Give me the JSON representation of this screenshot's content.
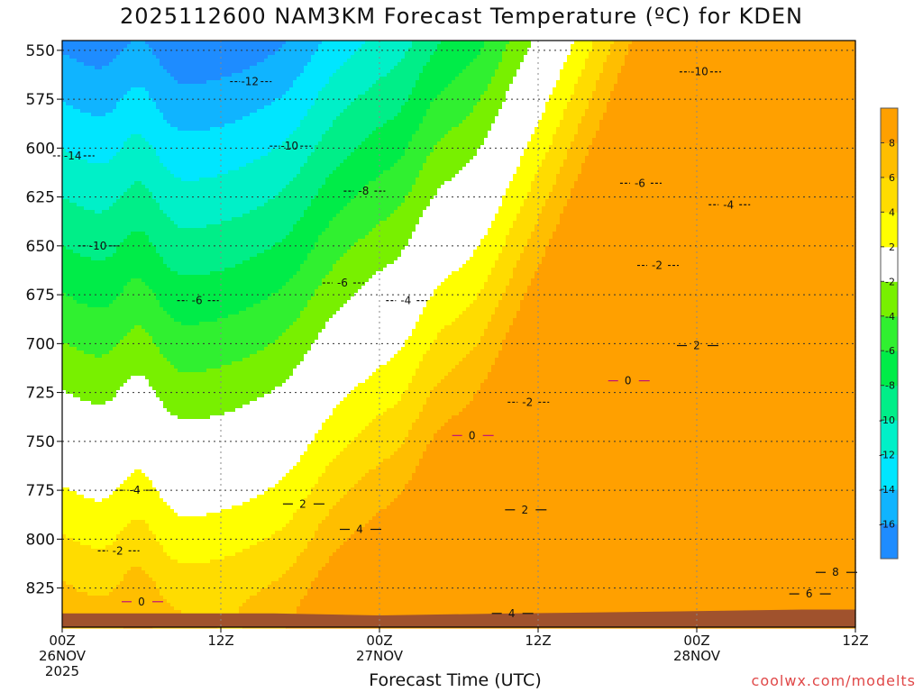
{
  "chart_data": {
    "type": "heatmap",
    "title": "2025112600 NAM3KM Forecast Temperature (ºC) for KDEN",
    "xlabel": "Forecast Time (UTC)",
    "ylabel": "",
    "x_ticks": [
      {
        "hour": 0,
        "lines": [
          "00Z",
          "26NOV",
          "2025"
        ]
      },
      {
        "hour": 12,
        "lines": [
          "12Z"
        ]
      },
      {
        "hour": 24,
        "lines": [
          "00Z",
          "27NOV"
        ]
      },
      {
        "hour": 36,
        "lines": [
          "12Z"
        ]
      },
      {
        "hour": 48,
        "lines": [
          "00Z",
          "28NOV"
        ]
      },
      {
        "hour": 60,
        "lines": [
          "12Z"
        ]
      }
    ],
    "xlim": [
      0,
      60
    ],
    "ylim": [
      845,
      545
    ],
    "y_ticks": [
      550,
      575,
      600,
      625,
      650,
      675,
      700,
      725,
      750,
      775,
      800,
      825
    ],
    "y_units": "hPa",
    "grid": true,
    "colorbar": {
      "levels": [
        -18,
        -16,
        -14,
        -12,
        -10,
        -8,
        -6,
        -4,
        -2,
        2,
        4,
        6,
        8,
        10
      ],
      "labels": [
        "-16",
        "-14",
        "-12",
        "-10",
        "-8",
        "-6",
        "-4",
        "-2",
        "2",
        "4",
        "6",
        "8"
      ],
      "colors": [
        "#1e8cff",
        "#10b4ff",
        "#00e6ff",
        "#00f0c8",
        "#00ee88",
        "#00ec48",
        "#30f030",
        "#78f000",
        "#ffffff",
        "#ffff00",
        "#ffdc00",
        "#ffbe00",
        "#ffa000"
      ]
    },
    "contour_labels": [
      {
        "value": "-14",
        "x": 0.8,
        "y": 604
      },
      {
        "value": "-12",
        "x": 14.2,
        "y": 566
      },
      {
        "value": "-10",
        "x": 48.2,
        "y": 561
      },
      {
        "value": "-10",
        "x": 17.2,
        "y": 599
      },
      {
        "value": "-10",
        "x": 2.7,
        "y": 650
      },
      {
        "value": "-8",
        "x": 22.8,
        "y": 622
      },
      {
        "value": "-6",
        "x": 43.7,
        "y": 618
      },
      {
        "value": "-6",
        "x": 21.2,
        "y": 669
      },
      {
        "value": "-6",
        "x": 10.2,
        "y": 678
      },
      {
        "value": "-4",
        "x": 50.4,
        "y": 629
      },
      {
        "value": "-4",
        "x": 26.0,
        "y": 678
      },
      {
        "value": "-4",
        "x": 5.5,
        "y": 775
      },
      {
        "value": "-2",
        "x": 45.0,
        "y": 660
      },
      {
        "value": "-2",
        "x": 35.2,
        "y": 730
      },
      {
        "value": "-2",
        "x": 4.2,
        "y": 806
      },
      {
        "value": "0",
        "x": 42.8,
        "y": 719
      },
      {
        "value": "0",
        "x": 31.0,
        "y": 747
      },
      {
        "value": "0",
        "x": 6.0,
        "y": 832
      },
      {
        "value": "2",
        "x": 48.0,
        "y": 701
      },
      {
        "value": "2",
        "x": 35.0,
        "y": 785
      },
      {
        "value": "2",
        "x": 18.2,
        "y": 782
      },
      {
        "value": "4",
        "x": 22.5,
        "y": 795
      },
      {
        "value": "4",
        "x": 34.0,
        "y": 838
      },
      {
        "value": "6",
        "x": 56.5,
        "y": 828
      },
      {
        "value": "8",
        "x": 58.5,
        "y": 817
      }
    ]
  },
  "credit": "coolwx.com/modelts"
}
